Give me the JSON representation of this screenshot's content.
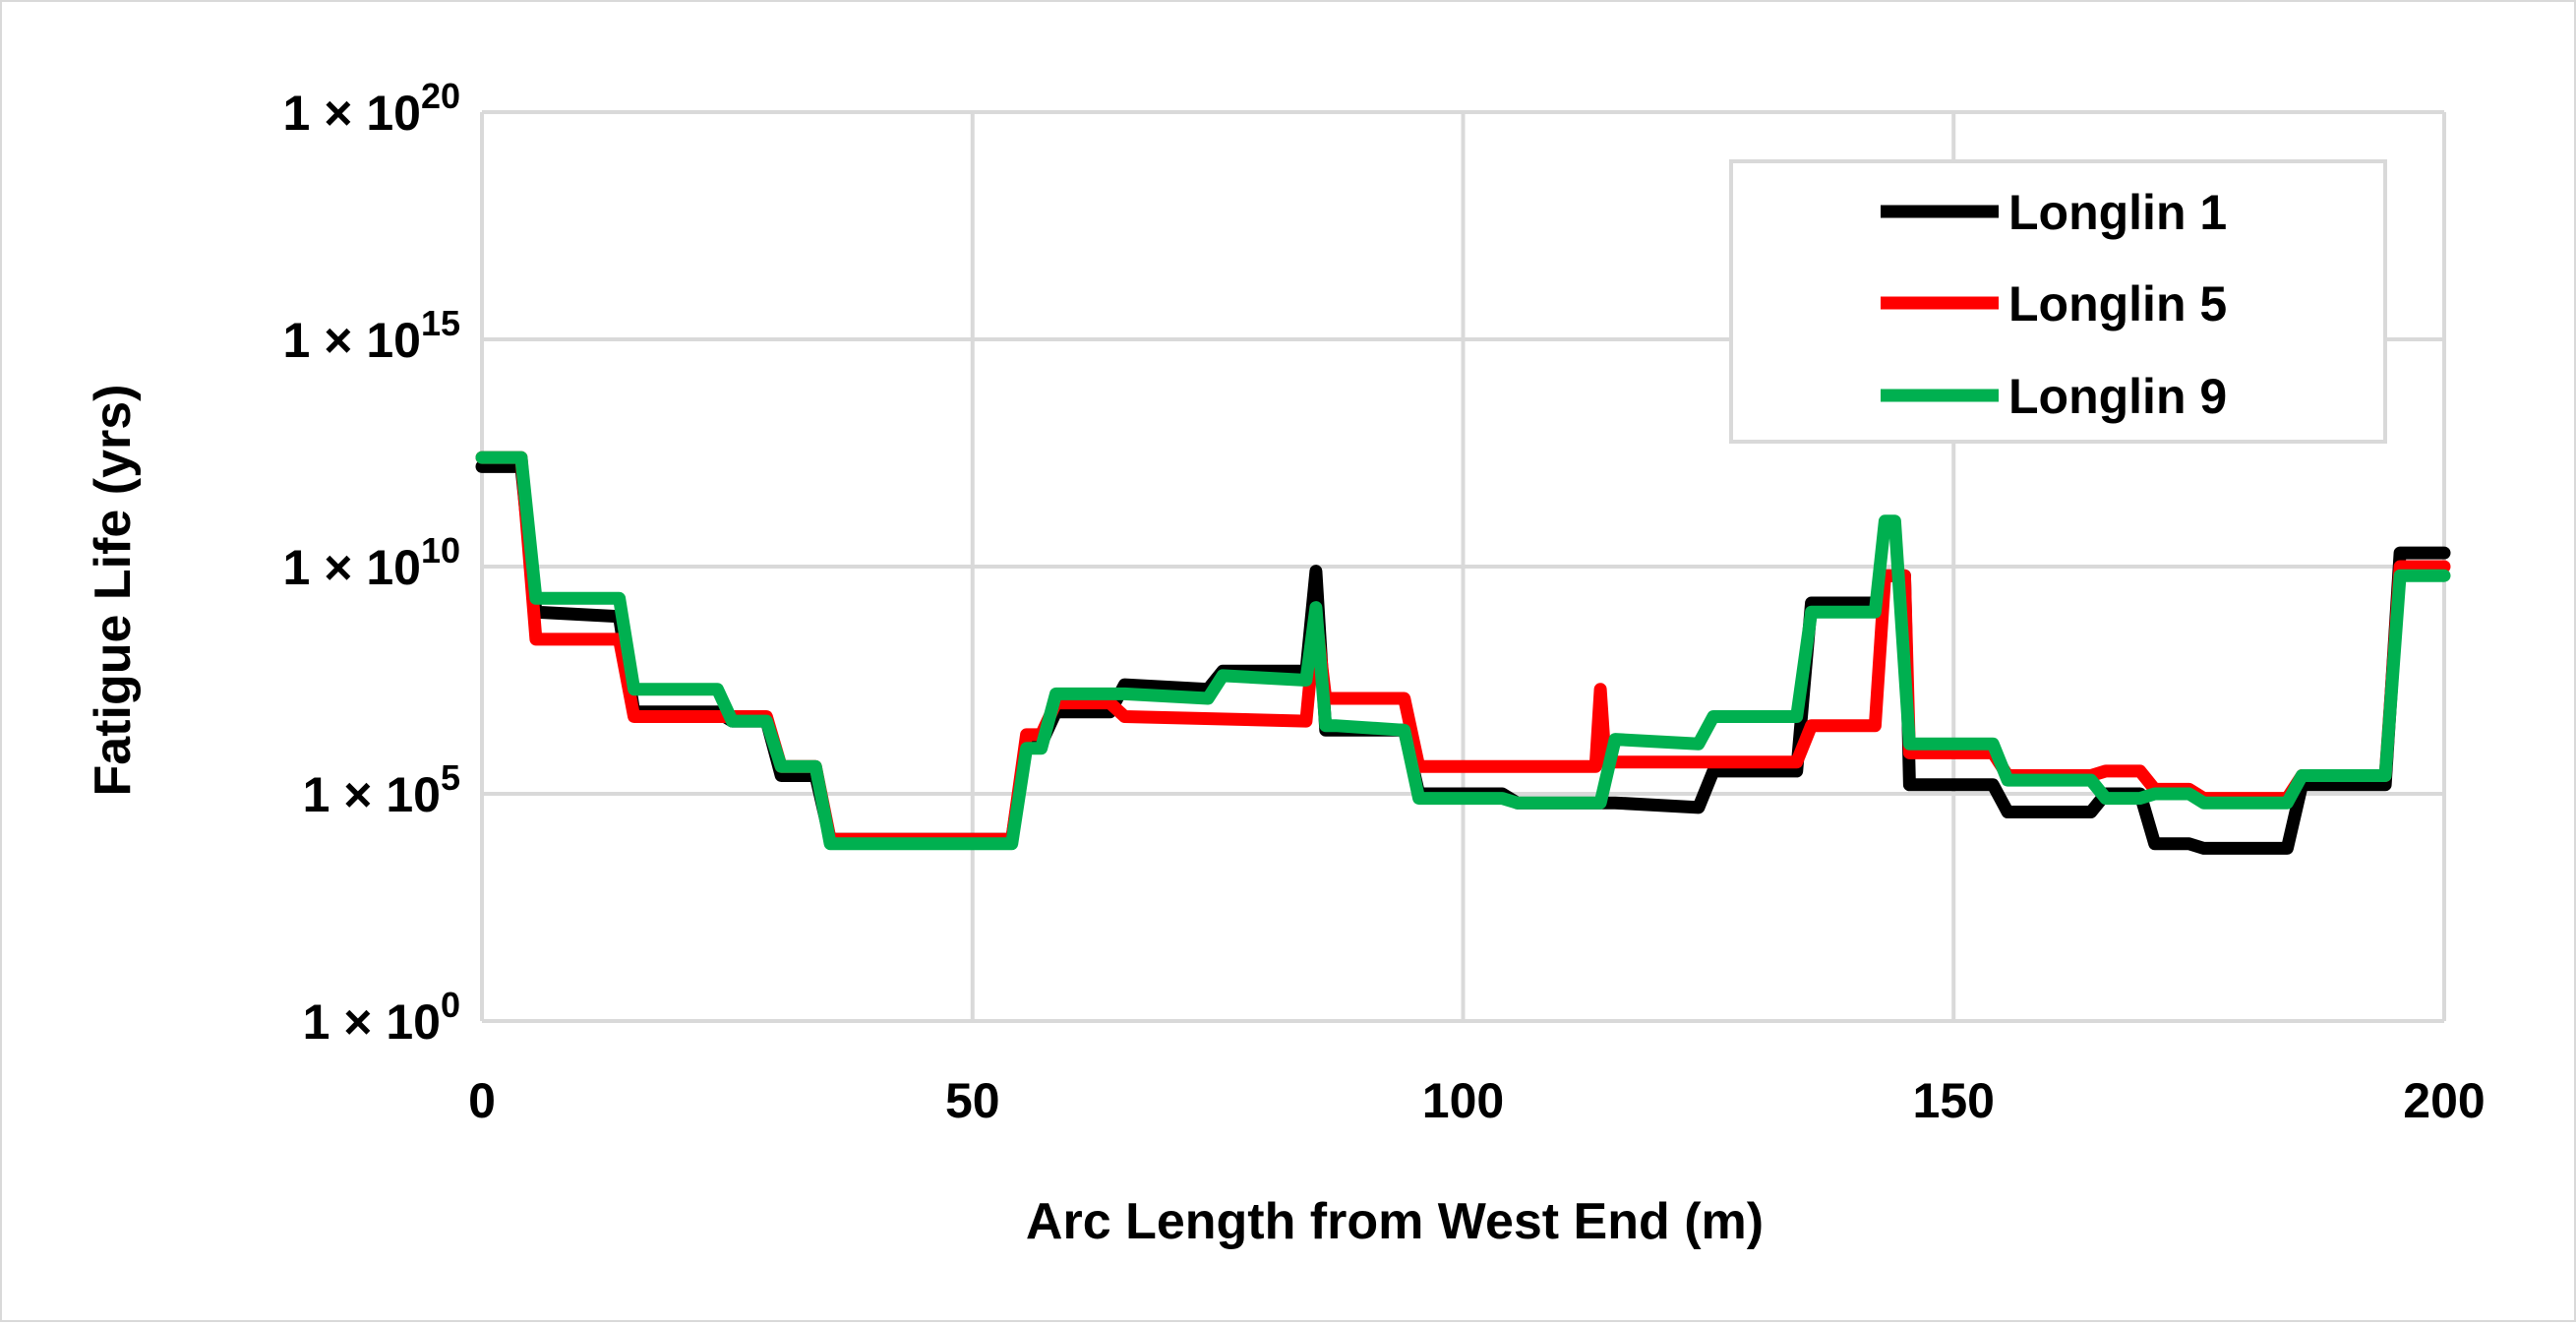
{
  "chart_data": {
    "type": "line",
    "title": "",
    "xlabel": "Arc Length from West End (m)",
    "ylabel": "Fatigue Life (yrs)",
    "xlim": [
      0,
      200
    ],
    "ylim_log10": [
      0,
      20
    ],
    "y_scale": "log",
    "grid": true,
    "legend_position": "top-right",
    "x_ticks": [
      "0",
      "50",
      "100",
      "150",
      "200"
    ],
    "y_ticks": [
      {
        "exp": 0,
        "mantissa": "1 × 10",
        "power": "0"
      },
      {
        "exp": 5,
        "mantissa": "1 × 10",
        "power": "5"
      },
      {
        "exp": 10,
        "mantissa": "1 × 10",
        "power": "10"
      },
      {
        "exp": 15,
        "mantissa": "1 × 10",
        "power": "15"
      },
      {
        "exp": 20,
        "mantissa": "1 × 10",
        "power": "20"
      }
    ],
    "series": [
      {
        "name": "Longlin 1",
        "color": "#000000",
        "log10_values": true,
        "x": [
          0,
          4,
          5.5,
          14,
          15.5,
          24,
          25.5,
          29,
          30.5,
          34,
          35.5,
          54,
          55.5,
          57,
          58.5,
          64,
          65.5,
          74,
          75.5,
          84,
          85,
          86,
          87,
          94,
          95.5,
          104,
          105.5,
          114,
          115.5,
          124,
          125.5,
          134,
          135.5,
          142,
          143,
          145,
          145.5,
          154,
          155.5,
          164,
          165.5,
          169,
          170.5,
          174,
          175.5,
          184,
          185.5,
          194,
          195.5,
          200
        ],
        "y": [
          12.2,
          12.2,
          9.0,
          8.9,
          6.8,
          6.8,
          6.6,
          6.6,
          5.4,
          5.4,
          4.0,
          4.0,
          6.1,
          6.1,
          6.8,
          6.8,
          7.4,
          7.3,
          7.7,
          7.7,
          9.9,
          6.4,
          6.4,
          6.4,
          5.0,
          5.0,
          4.8,
          4.8,
          4.8,
          4.7,
          5.5,
          5.5,
          9.2,
          9.2,
          9.8,
          9.8,
          5.2,
          5.2,
          4.6,
          4.6,
          5.0,
          5.0,
          3.9,
          3.9,
          3.8,
          3.8,
          5.2,
          5.2,
          10.3,
          10.3
        ]
      },
      {
        "name": "Longlin 5",
        "color": "#ff0000",
        "log10_values": true,
        "x": [
          0,
          4,
          5.5,
          14,
          15.5,
          24,
          25.5,
          29,
          30.5,
          34,
          35.5,
          54,
          55.5,
          57,
          58.5,
          64,
          65.5,
          84,
          85,
          86,
          87,
          94,
          95.5,
          104,
          105.5,
          113.5,
          114,
          114.5,
          115.5,
          124,
          125.5,
          134,
          135.5,
          142,
          143,
          145,
          145.5,
          154,
          155.5,
          164,
          165.5,
          169,
          170.5,
          174,
          175.5,
          184,
          185.5,
          194,
          195.5,
          200
        ],
        "y": [
          12.4,
          12.4,
          8.4,
          8.4,
          6.7,
          6.7,
          6.7,
          6.7,
          5.6,
          5.6,
          4.0,
          4.0,
          6.3,
          6.3,
          7.0,
          7.0,
          6.7,
          6.6,
          8.9,
          7.1,
          7.1,
          7.1,
          5.6,
          5.6,
          5.6,
          5.6,
          7.3,
          5.7,
          5.7,
          5.7,
          5.7,
          5.7,
          6.5,
          6.5,
          9.8,
          9.8,
          5.9,
          5.9,
          5.4,
          5.4,
          5.5,
          5.5,
          5.1,
          5.1,
          4.9,
          4.9,
          5.4,
          5.4,
          10.0,
          10.0
        ]
      },
      {
        "name": "Longlin 9",
        "color": "#00b050",
        "log10_values": true,
        "x": [
          0,
          4,
          5.5,
          14,
          15.5,
          24,
          25.5,
          29,
          30.5,
          34,
          35.5,
          54,
          55.5,
          57,
          58.5,
          64,
          65.5,
          74,
          75.5,
          84,
          85,
          86,
          87,
          94,
          95.5,
          104,
          105.5,
          114,
          115.5,
          124,
          125.5,
          134,
          135.5,
          142,
          143,
          144,
          145.5,
          154,
          155.5,
          164,
          165.5,
          169,
          170.5,
          174,
          175.5,
          184,
          185.5,
          194,
          195.5,
          200
        ],
        "y": [
          12.4,
          12.4,
          9.3,
          9.3,
          7.3,
          7.3,
          6.6,
          6.6,
          5.6,
          5.6,
          3.9,
          3.9,
          6.0,
          6.0,
          7.2,
          7.2,
          7.2,
          7.1,
          7.6,
          7.5,
          9.1,
          6.5,
          6.5,
          6.4,
          4.9,
          4.9,
          4.8,
          4.8,
          6.2,
          6.1,
          6.7,
          6.7,
          9.0,
          9.0,
          11.0,
          11.0,
          6.1,
          6.1,
          5.3,
          5.3,
          4.9,
          4.9,
          5.0,
          5.0,
          4.8,
          4.8,
          5.4,
          5.4,
          9.8,
          9.8
        ]
      }
    ]
  }
}
